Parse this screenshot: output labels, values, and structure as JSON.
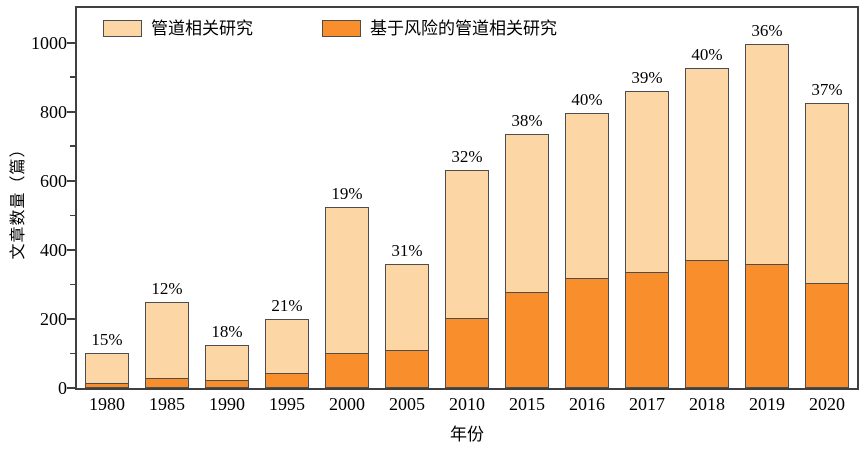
{
  "chart_data": {
    "type": "bar",
    "stacked": true,
    "title": "",
    "xlabel": "年份",
    "ylabel": "文章数量（篇）",
    "categories": [
      "1980",
      "1985",
      "1990",
      "1995",
      "2000",
      "2005",
      "2010",
      "2015",
      "2016",
      "2017",
      "2018",
      "2019",
      "2020"
    ],
    "series": [
      {
        "name": "管道相关研究",
        "color": "#FCD6A4",
        "values": [
          100,
          250,
          125,
          200,
          525,
          360,
          630,
          735,
          795,
          860,
          925,
          995,
          825
        ]
      },
      {
        "name": "基于风险的管道相关研究",
        "color": "#F98E2C",
        "values": [
          15,
          30,
          22,
          42,
          100,
          111,
          202,
          278,
          318,
          335,
          370,
          358,
          305
        ]
      }
    ],
    "percent_labels": [
      "15%",
      "12%",
      "18%",
      "21%",
      "19%",
      "31%",
      "32%",
      "38%",
      "40%",
      "39%",
      "40%",
      "36%",
      "37%"
    ],
    "ylim": [
      0,
      1100
    ],
    "yticks": [
      0,
      200,
      400,
      600,
      800,
      1000
    ],
    "minor_tick_step": 100,
    "grid": false,
    "legend_position": "top-inside",
    "axis_color": "#404040",
    "bar_border_color": "#4d4d4d",
    "text_color": "#000000"
  }
}
